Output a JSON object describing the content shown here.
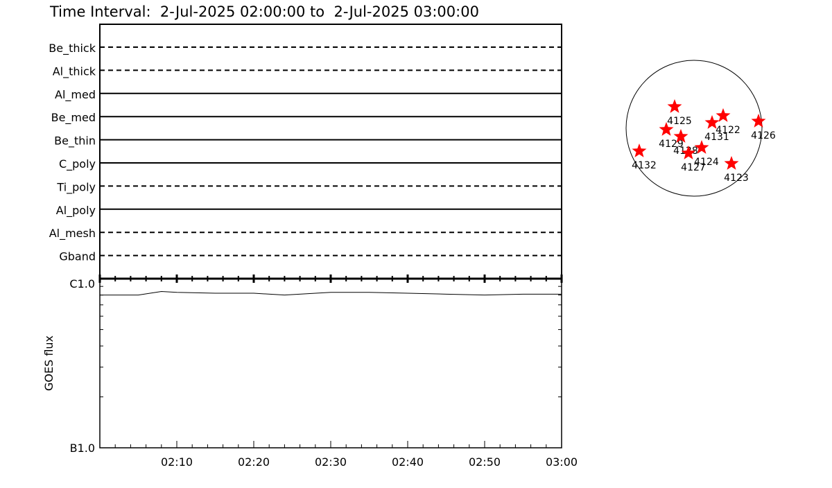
{
  "title": "Time Interval:  2-Jul-2025 02:00:00 to  2-Jul-2025 03:00:00",
  "chart_data": [
    {
      "type": "timeline",
      "x_range": [
        "02:00",
        "03:00"
      ],
      "rows": [
        {
          "label": "Be_thick",
          "style": "dashed"
        },
        {
          "label": "Al_thick",
          "style": "dashed"
        },
        {
          "label": "Al_med",
          "style": "solid"
        },
        {
          "label": "Be_med",
          "style": "solid"
        },
        {
          "label": "Be_thin",
          "style": "solid"
        },
        {
          "label": "C_poly",
          "style": "solid"
        },
        {
          "label": "Ti_poly",
          "style": "dashed"
        },
        {
          "label": "Al_poly",
          "style": "solid"
        },
        {
          "label": "Al_mesh",
          "style": "dashed"
        },
        {
          "label": "Gband",
          "style": "dashed"
        }
      ]
    },
    {
      "type": "line",
      "ylabel": "GOES flux",
      "yscale": "log",
      "ylim": [
        1e-07,
        1e-06
      ],
      "ytick_labels": [
        "B1.0",
        "C1.0"
      ],
      "xtick_labels": [
        "02:10",
        "02:20",
        "02:30",
        "02:40",
        "02:50",
        "03:00"
      ],
      "x_minutes": [
        0,
        5,
        8,
        10,
        15,
        20,
        24,
        30,
        35,
        40,
        45,
        50,
        55,
        60
      ],
      "values": [
        8e-07,
        8e-07,
        8.4e-07,
        8.3e-07,
        8.2e-07,
        8.2e-07,
        8e-07,
        8.3e-07,
        8.3e-07,
        8.2e-07,
        8.1e-07,
        8e-07,
        8.1e-07,
        8.1e-07
      ],
      "line_color": "#000000"
    },
    {
      "type": "scatter",
      "marker": "star",
      "marker_color": "#ff0000",
      "labels": [
        "4125",
        "4129",
        "4128",
        "4127",
        "4124",
        "4131",
        "4122",
        "4126",
        "4132",
        "4123"
      ]
    }
  ]
}
